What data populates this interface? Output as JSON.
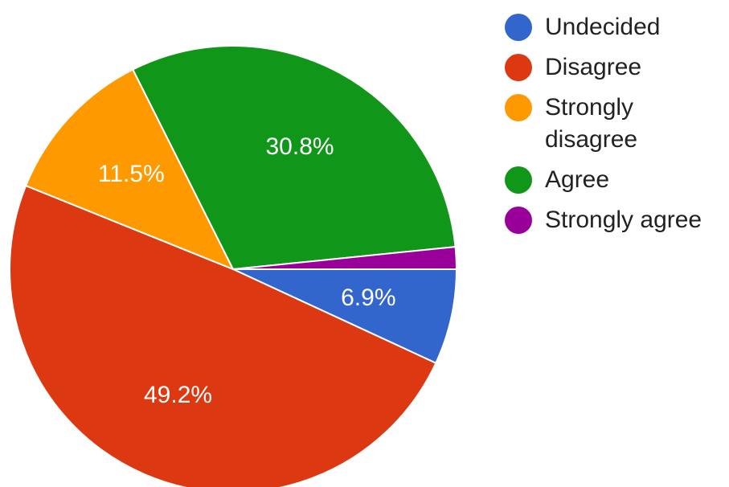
{
  "chart_data": {
    "type": "pie",
    "title": "",
    "slices": [
      {
        "name": "Undecided",
        "value": 6.9,
        "label": "6.9%",
        "color": "#3366cc",
        "show_label": true
      },
      {
        "name": "Disagree",
        "value": 49.2,
        "label": "49.2%",
        "color": "#dc3912",
        "show_label": true
      },
      {
        "name": "Strongly disagree",
        "value": 11.5,
        "label": "11.5%",
        "color": "#ff9900",
        "show_label": true
      },
      {
        "name": "Agree",
        "value": 30.8,
        "label": "30.8%",
        "color": "#109618",
        "show_label": true
      },
      {
        "name": "Strongly agree",
        "value": 1.6,
        "label": "",
        "color": "#990099",
        "show_label": false
      }
    ],
    "legend": {
      "placement": "right",
      "entries": [
        "Undecided",
        "Disagree",
        "Strongly disagree",
        "Agree",
        "Strongly agree"
      ]
    },
    "start_direction": "east",
    "direction": "clockwise"
  }
}
